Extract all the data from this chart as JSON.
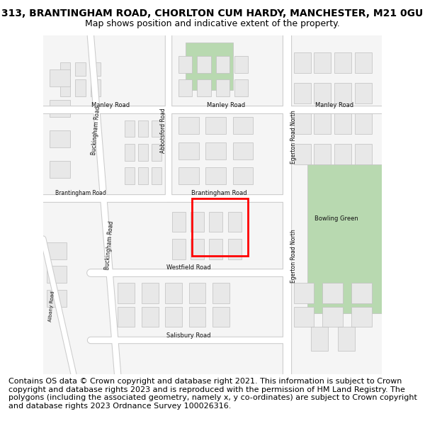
{
  "title_line1": "313, BRANTINGHAM ROAD, CHORLTON CUM HARDY, MANCHESTER, M21 0GU",
  "title_line2": "Map shows position and indicative extent of the property.",
  "footer_text": "Contains OS data © Crown copyright and database right 2021. This information is subject to Crown copyright and database rights 2023 and is reproduced with the permission of HM Land Registry. The polygons (including the associated geometry, namely x, y co-ordinates) are subject to Crown copyright and database rights 2023 Ordnance Survey 100026316.",
  "title_fontsize": 10,
  "subtitle_fontsize": 9,
  "footer_fontsize": 8,
  "map_bg": "#f5f5f5",
  "road_color": "#ffffff",
  "road_outline_color": "#cccccc",
  "building_color": "#e8e8e8",
  "building_edge_color": "#c0c0c0",
  "green_color": "#b8d9b0",
  "red_box_color": "#ff0000",
  "fig_bg": "#ffffff",
  "title_color": "#000000",
  "footer_color": "#000000"
}
